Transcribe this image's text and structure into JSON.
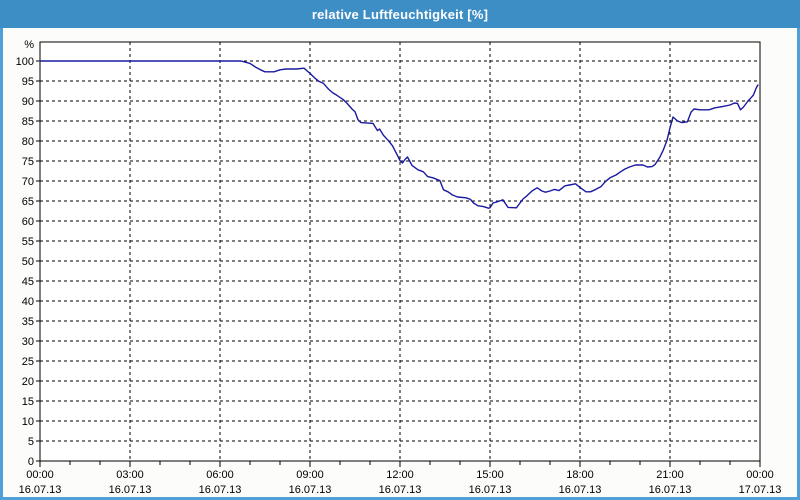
{
  "window": {
    "title": "relative Luftfeuchtigkeit [%]"
  },
  "colors": {
    "titlebar": "#3E8EC6",
    "frame": "#4FA0D6",
    "window_bg": "#FCFDFA",
    "plot_bg": "#FFFFFF",
    "grid": "#000000",
    "line": "#1A1AA0",
    "title_text": "#FFFFFF",
    "axis_text": "#000000"
  },
  "chart_data": {
    "type": "line",
    "title": "relative Luftfeuchtigkeit [%]",
    "ylabel": "%",
    "xlabel": "",
    "grid": true,
    "legend": "none",
    "ylim": [
      0,
      104.75
    ],
    "xlim_hours": [
      0,
      24
    ],
    "y_tick_step": 5,
    "x_major_step_hours": 3,
    "x_minor_step_hours": 1,
    "y_ticks": [
      0,
      5,
      10,
      15,
      20,
      25,
      30,
      35,
      40,
      45,
      50,
      55,
      60,
      65,
      70,
      75,
      80,
      85,
      90,
      95,
      100
    ],
    "x_ticks": [
      {
        "hour": 0,
        "time": "00:00",
        "date": "16.07.13"
      },
      {
        "hour": 3,
        "time": "03:00",
        "date": "16.07.13"
      },
      {
        "hour": 6,
        "time": "06:00",
        "date": "16.07.13"
      },
      {
        "hour": 9,
        "time": "09:00",
        "date": "16.07.13"
      },
      {
        "hour": 12,
        "time": "12:00",
        "date": "16.07.13"
      },
      {
        "hour": 15,
        "time": "15:00",
        "date": "16.07.13"
      },
      {
        "hour": 18,
        "time": "18:00",
        "date": "16.07.13"
      },
      {
        "hour": 21,
        "time": "21:00",
        "date": "16.07.13"
      },
      {
        "hour": 24,
        "time": "00:00",
        "date": "17.07.13"
      }
    ],
    "series": [
      {
        "name": "relative Luftfeuchtigkeit",
        "unit": "%",
        "points": [
          [
            0.0,
            100
          ],
          [
            1.0,
            100
          ],
          [
            2.0,
            100
          ],
          [
            3.0,
            100
          ],
          [
            4.0,
            100
          ],
          [
            5.0,
            100
          ],
          [
            6.0,
            100
          ],
          [
            6.7,
            100
          ],
          [
            7.0,
            99.4
          ],
          [
            7.2,
            98.4
          ],
          [
            7.35,
            97.8
          ],
          [
            7.5,
            97.3
          ],
          [
            7.8,
            97.3
          ],
          [
            8.0,
            97.8
          ],
          [
            8.2,
            98.0
          ],
          [
            8.55,
            98.0
          ],
          [
            8.8,
            98.2
          ],
          [
            9.0,
            96.9
          ],
          [
            9.15,
            95.8
          ],
          [
            9.3,
            94.9
          ],
          [
            9.45,
            94.4
          ],
          [
            9.6,
            93.1
          ],
          [
            9.75,
            92.1
          ],
          [
            9.9,
            91.4
          ],
          [
            10.1,
            90.4
          ],
          [
            10.25,
            89.3
          ],
          [
            10.4,
            88.0
          ],
          [
            10.5,
            87.3
          ],
          [
            10.6,
            85.3
          ],
          [
            10.7,
            84.6
          ],
          [
            11.1,
            84.4
          ],
          [
            11.25,
            82.6
          ],
          [
            11.32,
            83.0
          ],
          [
            11.45,
            81.4
          ],
          [
            11.6,
            80.2
          ],
          [
            11.75,
            78.8
          ],
          [
            11.9,
            76.6
          ],
          [
            12.0,
            75.1
          ],
          [
            12.08,
            74.5
          ],
          [
            12.18,
            75.5
          ],
          [
            12.25,
            76.0
          ],
          [
            12.4,
            73.9
          ],
          [
            12.6,
            72.8
          ],
          [
            12.78,
            72.3
          ],
          [
            12.92,
            71.1
          ],
          [
            13.1,
            70.8
          ],
          [
            13.33,
            70.1
          ],
          [
            13.45,
            67.8
          ],
          [
            13.6,
            67.3
          ],
          [
            13.75,
            66.5
          ],
          [
            13.92,
            66.0
          ],
          [
            14.2,
            65.8
          ],
          [
            14.35,
            65.4
          ],
          [
            14.45,
            64.5
          ],
          [
            14.6,
            63.8
          ],
          [
            14.78,
            63.6
          ],
          [
            14.95,
            63.2
          ],
          [
            15.0,
            63.3
          ],
          [
            15.1,
            64.5
          ],
          [
            15.28,
            64.9
          ],
          [
            15.43,
            65.3
          ],
          [
            15.6,
            63.4
          ],
          [
            15.88,
            63.3
          ],
          [
            16.0,
            64.5
          ],
          [
            16.1,
            65.5
          ],
          [
            16.23,
            66.3
          ],
          [
            16.4,
            67.5
          ],
          [
            16.57,
            68.3
          ],
          [
            16.73,
            67.5
          ],
          [
            16.85,
            67.2
          ],
          [
            17.0,
            67.5
          ],
          [
            17.15,
            67.9
          ],
          [
            17.3,
            67.6
          ],
          [
            17.5,
            68.8
          ],
          [
            17.65,
            69.0
          ],
          [
            17.85,
            69.3
          ],
          [
            18.0,
            68.4
          ],
          [
            18.2,
            67.3
          ],
          [
            18.35,
            67.3
          ],
          [
            18.5,
            67.8
          ],
          [
            18.7,
            68.6
          ],
          [
            18.85,
            69.9
          ],
          [
            19.0,
            70.8
          ],
          [
            19.2,
            71.5
          ],
          [
            19.35,
            72.3
          ],
          [
            19.5,
            73.0
          ],
          [
            19.65,
            73.5
          ],
          [
            19.85,
            74.0
          ],
          [
            20.1,
            74.0
          ],
          [
            20.25,
            73.5
          ],
          [
            20.4,
            73.6
          ],
          [
            20.5,
            74.1
          ],
          [
            20.65,
            75.8
          ],
          [
            20.78,
            77.8
          ],
          [
            20.9,
            80.2
          ],
          [
            21.0,
            83.3
          ],
          [
            21.1,
            86.0
          ],
          [
            21.25,
            85.0
          ],
          [
            21.4,
            84.6
          ],
          [
            21.58,
            84.8
          ],
          [
            21.7,
            87.2
          ],
          [
            21.8,
            88.0
          ],
          [
            22.0,
            87.8
          ],
          [
            22.3,
            87.8
          ],
          [
            22.5,
            88.3
          ],
          [
            22.75,
            88.6
          ],
          [
            23.0,
            89.0
          ],
          [
            23.15,
            89.5
          ],
          [
            23.25,
            89.4
          ],
          [
            23.35,
            87.8
          ],
          [
            23.45,
            88.5
          ],
          [
            23.6,
            90.0
          ],
          [
            23.7,
            90.8
          ],
          [
            23.78,
            91.5
          ],
          [
            23.87,
            93.2
          ],
          [
            23.93,
            94.0
          ]
        ]
      }
    ]
  }
}
